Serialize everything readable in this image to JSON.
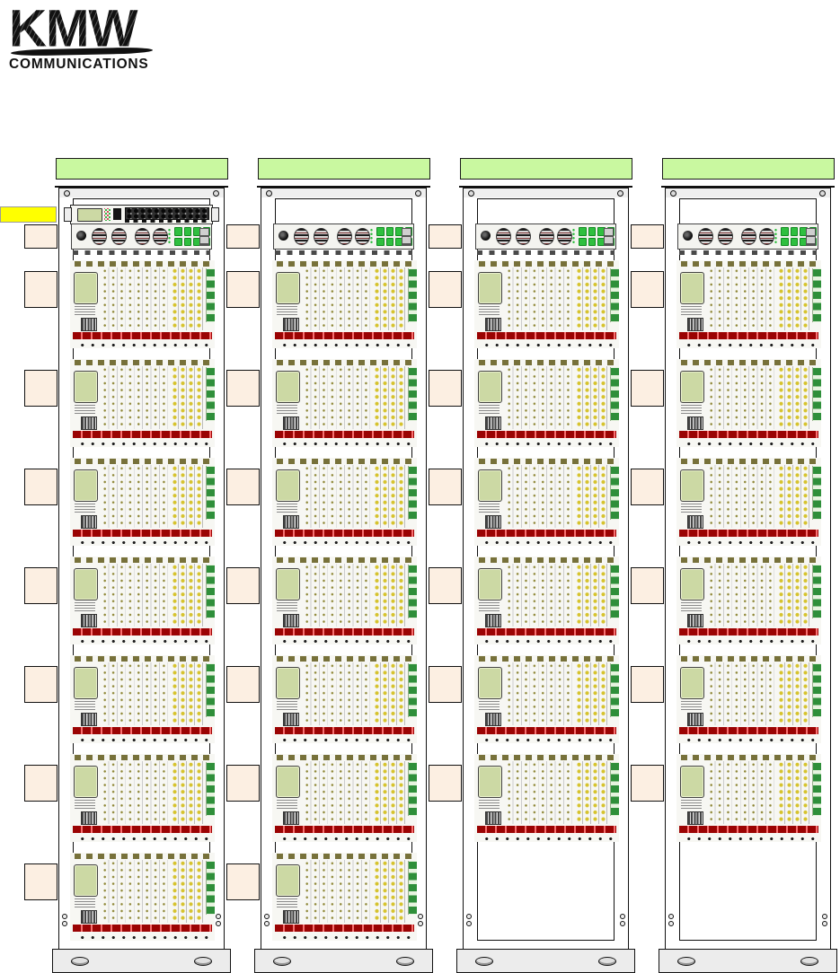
{
  "logo": {
    "name": "KMW",
    "subtitle": "COMMUNICATIONS"
  },
  "colors": {
    "header_green": "#c9f8a0",
    "callout_yellow": "#ffff00",
    "callout_pink": "#fcefe2",
    "alarm_bar_red": "#ee1111",
    "lcd_green": "#ccd9a4",
    "led_green": "#2fbf3f",
    "strip_green": "#2f8f3a",
    "connector_olive": "#8f8838",
    "connector_yellow": "#d6c32e"
  },
  "racks": [
    {
      "name": "rack-1",
      "header_label": "",
      "has_patch_panel": true,
      "has_control_unit": true,
      "shelf_count": 7
    },
    {
      "name": "rack-2",
      "header_label": "",
      "has_patch_panel": false,
      "has_control_unit": true,
      "shelf_count": 7
    },
    {
      "name": "rack-3",
      "header_label": "",
      "has_patch_panel": false,
      "has_control_unit": true,
      "shelf_count": 6
    },
    {
      "name": "rack-4",
      "header_label": "",
      "has_patch_panel": false,
      "has_control_unit": true,
      "shelf_count": 6
    }
  ],
  "annotations": {
    "yellow_label_text": "",
    "callout_columns": [
      {
        "for": "rack-1",
        "box_count": 8,
        "box_labels": [
          "",
          "",
          "",
          "",
          "",
          "",
          "",
          ""
        ]
      },
      {
        "for": "rack-2",
        "box_count": 8,
        "box_labels": [
          "",
          "",
          "",
          "",
          "",
          "",
          "",
          ""
        ]
      },
      {
        "for": "rack-3",
        "box_count": 7,
        "box_labels": [
          "",
          "",
          "",
          "",
          "",
          "",
          ""
        ]
      },
      {
        "for": "rack-4",
        "box_count": 7,
        "box_labels": [
          "",
          "",
          "",
          "",
          "",
          "",
          ""
        ]
      }
    ]
  }
}
